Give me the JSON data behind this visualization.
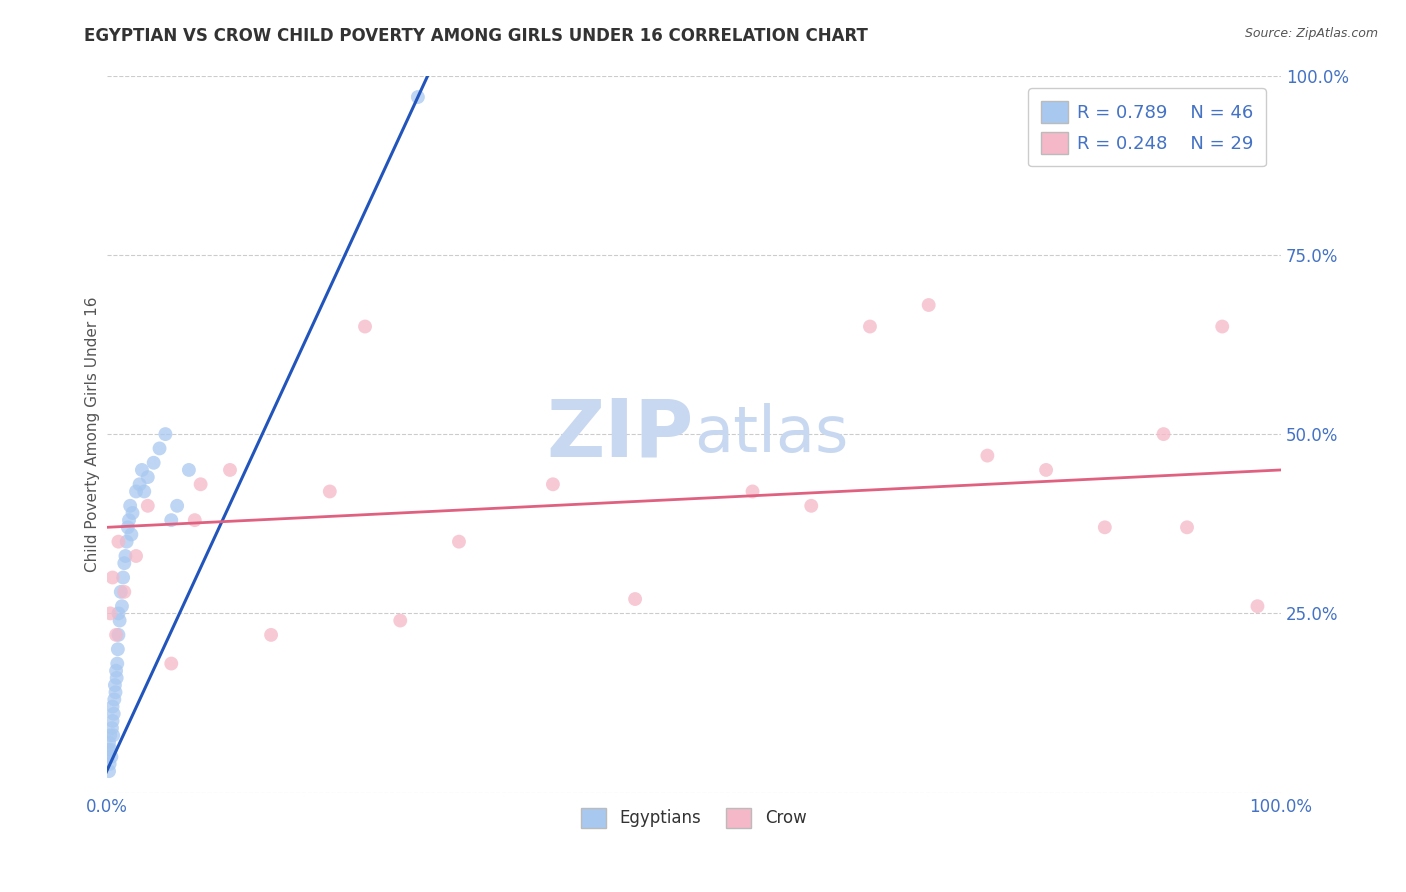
{
  "title": "EGYPTIAN VS CROW CHILD POVERTY AMONG GIRLS UNDER 16 CORRELATION CHART",
  "source": "Source: ZipAtlas.com",
  "ylabel": "Child Poverty Among Girls Under 16",
  "xlim": [
    0,
    100
  ],
  "ylim": [
    0,
    100
  ],
  "xticks": [
    0,
    25,
    50,
    75,
    100
  ],
  "yticks": [
    0,
    25,
    50,
    75,
    100
  ],
  "xticklabels": [
    "0.0%",
    "",
    "",
    "",
    "100.0%"
  ],
  "yticklabels": [
    "",
    "25.0%",
    "50.0%",
    "75.0%",
    "100.0%"
  ],
  "legend_r1": "R = 0.789",
  "legend_n1": "N = 46",
  "legend_r2": "R = 0.248",
  "legend_n2": "N = 29",
  "label1": "Egyptians",
  "label2": "Crow",
  "color1": "#A8C8F0",
  "color2": "#F5B8C8",
  "line_color1": "#2255BB",
  "line_color2": "#E06080",
  "watermark_zip": "ZIP",
  "watermark_atlas": "atlas",
  "watermark_color": "#C8D8F0",
  "background_color": "#FFFFFF",
  "egyptians_x": [
    0.1,
    0.15,
    0.2,
    0.2,
    0.25,
    0.3,
    0.35,
    0.4,
    0.45,
    0.5,
    0.5,
    0.55,
    0.6,
    0.65,
    0.7,
    0.75,
    0.8,
    0.85,
    0.9,
    0.95,
    1.0,
    1.0,
    1.1,
    1.2,
    1.3,
    1.4,
    1.5,
    1.6,
    1.7,
    1.8,
    1.9,
    2.0,
    2.1,
    2.2,
    2.5,
    2.8,
    3.0,
    3.2,
    3.5,
    4.0,
    4.5,
    5.0,
    5.5,
    6.0,
    7.0,
    26.5
  ],
  "egyptians_y": [
    5,
    6,
    3,
    7,
    4,
    8,
    6,
    5,
    9,
    10,
    12,
    8,
    11,
    13,
    15,
    14,
    17,
    16,
    18,
    20,
    22,
    25,
    24,
    28,
    26,
    30,
    32,
    33,
    35,
    37,
    38,
    40,
    36,
    39,
    42,
    43,
    45,
    42,
    44,
    46,
    48,
    50,
    38,
    40,
    45,
    97
  ],
  "crow_x": [
    0.3,
    0.5,
    0.8,
    1.0,
    1.5,
    2.5,
    3.5,
    5.5,
    7.5,
    8.0,
    10.5,
    14.0,
    19.0,
    22.0,
    25.0,
    30.0,
    38.0,
    45.0,
    55.0,
    60.0,
    65.0,
    70.0,
    75.0,
    80.0,
    85.0,
    90.0,
    92.0,
    95.0,
    98.0
  ],
  "crow_y": [
    25,
    30,
    22,
    35,
    28,
    33,
    40,
    18,
    38,
    43,
    45,
    22,
    42,
    65,
    24,
    35,
    43,
    27,
    42,
    40,
    65,
    68,
    47,
    45,
    37,
    50,
    37,
    65,
    26
  ],
  "eg_line_x": [
    0,
    26.5
  ],
  "eg_line_y": [
    3,
    97
  ],
  "crow_line_x": [
    0,
    100
  ],
  "crow_line_y": [
    37,
    45
  ]
}
